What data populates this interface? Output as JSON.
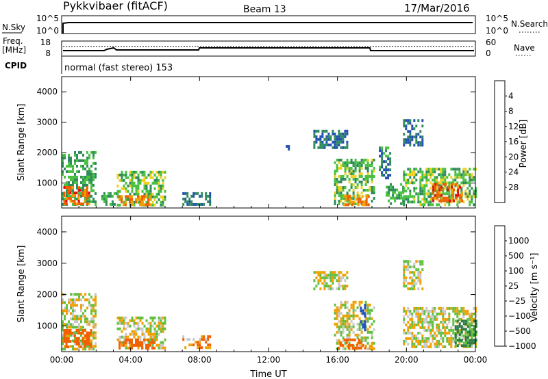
{
  "header": {
    "station": "Pykkvibaer (fitACF)",
    "beam": "Beam 13",
    "date": "17/Mar/2016"
  },
  "strip": {
    "nsky_label": "N.Sky",
    "nsky_ticks": [
      "10^5",
      "10^0"
    ],
    "nsearch_label": "N.Search",
    "nsearch_ticks": [
      "10^5",
      "10^0"
    ],
    "freq_label_top": "Freq.",
    "freq_label_bot": "[MHz]",
    "freq_ticks": [
      "18",
      "8"
    ],
    "nave_label": "Nave",
    "nave_ticks": [
      "60",
      "0"
    ],
    "cpid_label": "CPID",
    "cpid_value": "normal (fast stereo) 153"
  },
  "colors": {
    "power_scale": [
      "#1414f0",
      "#2050b0",
      "#2e8a5a",
      "#48c040",
      "#f0d020",
      "#f0a000",
      "#f06000",
      "#e01010"
    ],
    "velocity_scale": [
      "#e00000",
      "#f06000",
      "#f0a000",
      "#c8c8c8",
      "#c8c8c8",
      "#60c040",
      "#2e7a46",
      "#2050c0"
    ],
    "ground_scatter": "#c8c8c8"
  },
  "chart_data": [
    {
      "type": "heatmap",
      "panel": "power",
      "ylabel": "Slant Range [km]",
      "xlabel": "",
      "x_ticks": [
        "00:00",
        "04:00",
        "08:00",
        "12:00",
        "16:00",
        "20:00",
        "00:00"
      ],
      "y_ticks": [
        "1000",
        "2000",
        "3000",
        "4000"
      ],
      "xlim": [
        0,
        24
      ],
      "ylim": [
        180,
        4500
      ],
      "colorbar": {
        "label": "Power [dB]",
        "ticks": [
          "4",
          "8",
          "12",
          "16",
          "20",
          "24",
          "28"
        ],
        "range": [
          0,
          32
        ]
      },
      "patches": [
        {
          "t": [
            0.0,
            2.0
          ],
          "r": [
            300,
            2050
          ],
          "value": 12
        },
        {
          "t": [
            0.1,
            1.6
          ],
          "r": [
            350,
            900
          ],
          "value": 26
        },
        {
          "t": [
            2.3,
            3.2
          ],
          "r": [
            280,
            700
          ],
          "value": 12
        },
        {
          "t": [
            3.2,
            6.0
          ],
          "r": [
            300,
            1400
          ],
          "value": 14
        },
        {
          "t": [
            3.3,
            5.2
          ],
          "r": [
            300,
            600
          ],
          "value": 24
        },
        {
          "t": [
            7.0,
            8.6
          ],
          "r": [
            330,
            700
          ],
          "value": 8
        },
        {
          "t": [
            13.0,
            13.2
          ],
          "r": [
            2100,
            2250
          ],
          "value": 6
        },
        {
          "t": [
            14.6,
            16.6
          ],
          "r": [
            2200,
            2750
          ],
          "value": 8
        },
        {
          "t": [
            15.8,
            18.1
          ],
          "r": [
            300,
            1800
          ],
          "value": 14
        },
        {
          "t": [
            16.2,
            17.8
          ],
          "r": [
            300,
            600
          ],
          "value": 24
        },
        {
          "t": [
            18.4,
            19.0
          ],
          "r": [
            1200,
            2200
          ],
          "value": 10
        },
        {
          "t": [
            18.8,
            19.8
          ],
          "r": [
            300,
            1000
          ],
          "value": 12
        },
        {
          "t": [
            19.8,
            20.9
          ],
          "r": [
            2200,
            3100
          ],
          "value": 8
        },
        {
          "t": [
            19.8,
            24.0
          ],
          "r": [
            300,
            1500
          ],
          "value": 14
        },
        {
          "t": [
            21.5,
            23.2
          ],
          "r": [
            450,
            1000
          ],
          "value": 26
        }
      ]
    },
    {
      "type": "heatmap",
      "panel": "velocity",
      "ylabel": "Slant Range [km]",
      "xlabel": "Time UT",
      "x_ticks": [
        "00:00",
        "04:00",
        "08:00",
        "12:00",
        "16:00",
        "20:00",
        "00:00"
      ],
      "y_ticks": [
        "1000",
        "2000",
        "3000",
        "4000"
      ],
      "xlim": [
        0,
        24
      ],
      "ylim": [
        180,
        4500
      ],
      "colorbar": {
        "label": "Velocity [m s⁻¹]",
        "ticks": [
          "1000",
          "500",
          "100",
          "25",
          "−25",
          "−100",
          "−500",
          "−1000"
        ],
        "range": [
          -1000,
          1000
        ]
      },
      "patches": [
        {
          "t": [
            0.0,
            2.0
          ],
          "r": [
            300,
            2050
          ],
          "value": 0
        },
        {
          "t": [
            0.1,
            1.7
          ],
          "r": [
            300,
            900
          ],
          "value": -300
        },
        {
          "t": [
            3.2,
            6.0
          ],
          "r": [
            300,
            1300
          ],
          "value": 0
        },
        {
          "t": [
            3.3,
            5.4
          ],
          "r": [
            300,
            600
          ],
          "value": -300
        },
        {
          "t": [
            7.0,
            8.6
          ],
          "r": [
            330,
            700
          ],
          "value": -100
        },
        {
          "t": [
            14.6,
            16.6
          ],
          "r": [
            2200,
            2750
          ],
          "value": 0
        },
        {
          "t": [
            15.8,
            18.1
          ],
          "r": [
            300,
            1800
          ],
          "value": 0
        },
        {
          "t": [
            16.0,
            17.6
          ],
          "r": [
            300,
            600
          ],
          "value": -300
        },
        {
          "t": [
            17.3,
            17.6
          ],
          "r": [
            900,
            1700
          ],
          "value": 800
        },
        {
          "t": [
            19.8,
            20.9
          ],
          "r": [
            2200,
            3100
          ],
          "value": 0
        },
        {
          "t": [
            19.8,
            24.0
          ],
          "r": [
            300,
            1600
          ],
          "value": 0
        },
        {
          "t": [
            22.8,
            24.0
          ],
          "r": [
            400,
            1200
          ],
          "value": 150
        }
      ]
    }
  ]
}
